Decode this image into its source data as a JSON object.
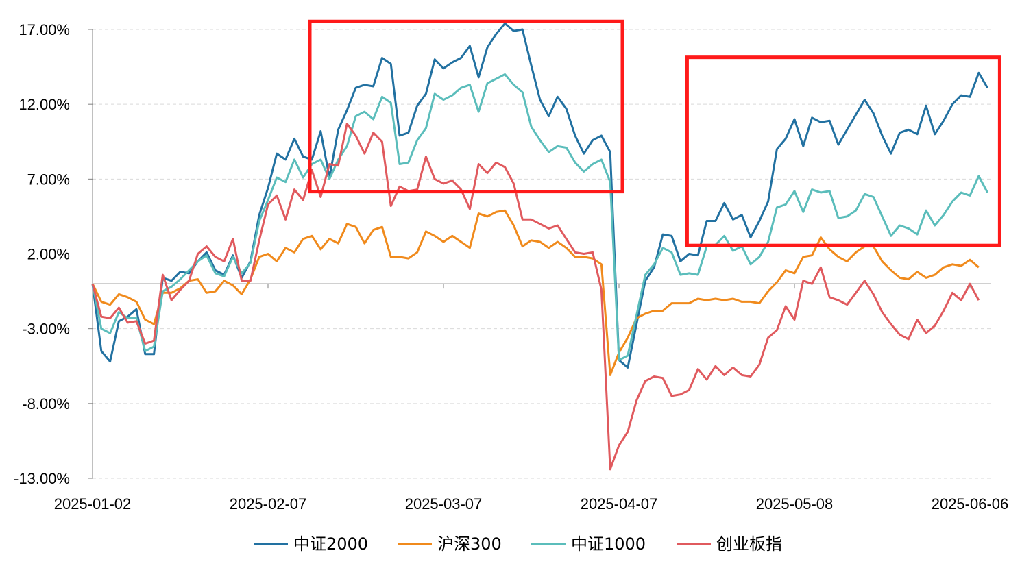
{
  "chart_data": {
    "type": "line",
    "title": "",
    "xlabel": "",
    "ylabel": "",
    "ylim": [
      -13,
      17
    ],
    "y_ticks": [
      "17.00%",
      "12.00%",
      "7.00%",
      "2.00%",
      "-3.00%",
      "-8.00%",
      "-13.00%"
    ],
    "y_tick_values": [
      17,
      12,
      7,
      2,
      -3,
      -8,
      -13
    ],
    "x_ticks": [
      "2025-01-02",
      "2025-02-07",
      "2025-03-07",
      "2025-04-07",
      "2025-05-08",
      "2025-06-06"
    ],
    "x_tick_index": [
      0,
      20,
      40,
      60,
      80,
      100
    ],
    "grid": "horizontal dashed",
    "legend_position": "bottom",
    "highlight_boxes": [
      {
        "from_index": 25,
        "to_index": 60,
        "y_top": 17.4,
        "y_bottom": 6.3
      },
      {
        "from_index": 68,
        "to_index": 103,
        "y_top": 15.0,
        "y_bottom": 2.7
      }
    ],
    "series": [
      {
        "name": "中证2000",
        "color": "#2271a1",
        "values": [
          0,
          -4.5,
          -5.2,
          -2.5,
          -2.2,
          -1.7,
          -4.7,
          -4.7,
          0.4,
          0.2,
          0.8,
          0.7,
          1.5,
          2.1,
          0.9,
          0.6,
          1.9,
          0.4,
          1.5,
          4.6,
          6.4,
          8.7,
          8.3,
          9.7,
          8.5,
          8.3,
          10.2,
          7.1,
          10.3,
          11.6,
          13.1,
          13.3,
          13.2,
          15.1,
          14.7,
          9.9,
          10.1,
          11.9,
          12.7,
          15.0,
          14.4,
          14.8,
          15.1,
          15.9,
          13.8,
          15.8,
          16.7,
          17.4,
          16.9,
          17.0,
          14.6,
          12.3,
          11.2,
          12.5,
          11.7,
          9.9,
          8.7,
          9.6,
          9.9,
          8.8,
          -5.1,
          -5.6,
          -2.7,
          0.2,
          1.1,
          3.3,
          3.2,
          1.5,
          2.0,
          1.9,
          4.2,
          4.2,
          5.4,
          4.3,
          4.6,
          3.1,
          4.2,
          5.5,
          9.0,
          9.7,
          11.0,
          9.2,
          11.1,
          10.8,
          10.9,
          9.3,
          10.3,
          11.3,
          12.3,
          11.4,
          9.9,
          8.7,
          10.1,
          10.3,
          10.0,
          11.9,
          10.0,
          10.9,
          12.0,
          12.6,
          12.5,
          14.1,
          13.1
        ]
      },
      {
        "name": "沪深300",
        "color": "#f08a1c",
        "values": [
          0,
          -1.2,
          -1.4,
          -0.7,
          -0.9,
          -1.2,
          -2.4,
          -2.7,
          -0.6,
          -0.6,
          -0.3,
          0.2,
          0.3,
          -0.6,
          -0.5,
          0.2,
          -0.1,
          -0.7,
          0.3,
          1.8,
          2.0,
          1.5,
          2.4,
          2.1,
          3.0,
          3.2,
          2.3,
          3.0,
          2.7,
          4.0,
          3.8,
          2.7,
          3.6,
          3.8,
          1.8,
          1.8,
          1.7,
          2.1,
          3.5,
          3.2,
          2.8,
          3.2,
          2.8,
          2.4,
          4.7,
          4.5,
          4.8,
          4.9,
          3.9,
          2.5,
          2.9,
          2.8,
          2.4,
          2.8,
          2.4,
          1.8,
          1.8,
          1.7,
          1.3,
          -6.1,
          -4.6,
          -3.6,
          -2.3,
          -2.0,
          -1.8,
          -1.8,
          -1.3,
          -1.3,
          -1.3,
          -1.0,
          -1.1,
          -1.0,
          -1.1,
          -1.0,
          -1.2,
          -1.2,
          -1.3,
          -0.5,
          0.1,
          0.9,
          0.7,
          1.8,
          1.9,
          3.1,
          2.3,
          1.8,
          1.5,
          2.1,
          2.5,
          2.5,
          1.5,
          0.9,
          0.4,
          0.3,
          0.8,
          0.4,
          0.6,
          1.1,
          1.3,
          1.2,
          1.6,
          1.1
        ]
      },
      {
        "name": "中证1000",
        "color": "#5bbdbb",
        "values": [
          0,
          -3.0,
          -3.3,
          -1.9,
          -2.3,
          -2.3,
          -4.5,
          -4.2,
          -0.5,
          -0.2,
          0.3,
          0.9,
          1.5,
          1.9,
          0.7,
          0.5,
          1.8,
          0.7,
          1.4,
          4.2,
          5.6,
          7.1,
          6.8,
          8.3,
          7.1,
          8.0,
          8.3,
          7.0,
          8.3,
          9.2,
          11.2,
          11.5,
          11.0,
          12.5,
          12.1,
          8.0,
          8.1,
          9.6,
          10.4,
          12.7,
          12.3,
          12.6,
          13.1,
          13.3,
          11.5,
          13.4,
          13.7,
          14.0,
          13.3,
          12.8,
          10.5,
          9.6,
          8.8,
          9.2,
          9.1,
          8.1,
          7.5,
          8.0,
          8.3,
          6.8,
          -5.1,
          -4.8,
          -2.1,
          0.6,
          1.3,
          2.4,
          2.1,
          0.6,
          0.7,
          0.6,
          2.5,
          2.6,
          3.2,
          2.2,
          2.5,
          1.3,
          1.8,
          2.8,
          5.1,
          5.3,
          6.2,
          4.8,
          6.3,
          6.1,
          6.2,
          4.4,
          4.5,
          4.9,
          6.0,
          5.8,
          4.5,
          3.2,
          3.9,
          3.7,
          3.3,
          4.9,
          3.9,
          4.6,
          5.5,
          6.1,
          5.9,
          7.2,
          6.1
        ]
      },
      {
        "name": "创业板指",
        "color": "#e05a5e",
        "values": [
          0,
          -2.2,
          -2.3,
          -1.6,
          -2.6,
          -2.5,
          -4.0,
          -3.8,
          0.6,
          -1.1,
          -0.4,
          0.2,
          2.0,
          2.5,
          1.8,
          1.5,
          3.0,
          0.2,
          0.2,
          2.9,
          5.3,
          5.9,
          4.3,
          6.3,
          5.6,
          7.6,
          5.8,
          8.0,
          7.9,
          10.7,
          9.9,
          8.7,
          10.1,
          9.5,
          5.2,
          6.5,
          6.2,
          6.3,
          8.5,
          7.0,
          6.7,
          6.9,
          6.3,
          5.0,
          8.0,
          7.4,
          8.1,
          7.8,
          6.7,
          4.3,
          4.3,
          4.0,
          3.7,
          3.9,
          3.0,
          2.1,
          2.0,
          2.1,
          -0.4,
          -12.4,
          -10.8,
          -9.9,
          -7.8,
          -6.5,
          -6.2,
          -6.3,
          -7.5,
          -7.4,
          -7.1,
          -5.7,
          -6.4,
          -5.5,
          -6.1,
          -5.6,
          -6.1,
          -6.2,
          -5.4,
          -3.6,
          -3.1,
          -1.5,
          -2.4,
          0.2,
          0.0,
          1.1,
          -0.9,
          -1.1,
          -1.4,
          -0.6,
          0.2,
          -0.7,
          -1.9,
          -2.7,
          -3.4,
          -3.7,
          -2.4,
          -3.3,
          -2.8,
          -1.8,
          -0.6,
          -1.1,
          0.0,
          -1.1
        ]
      }
    ]
  }
}
